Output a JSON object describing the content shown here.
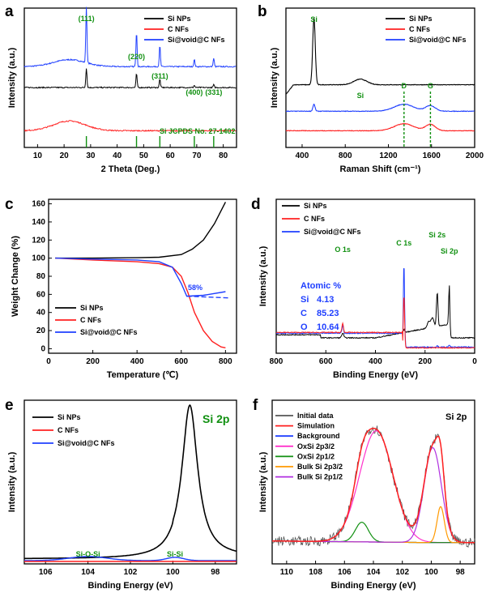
{
  "chart_data": [
    {
      "id": "a",
      "type": "line",
      "panel_label": "a",
      "xlabel": "2 Theta (Deg.)",
      "ylabel": "Intensity (a.u.)",
      "xlim": [
        5,
        85
      ],
      "xticks": [
        10,
        20,
        30,
        40,
        50,
        60,
        70,
        80
      ],
      "legend": [
        "Si NPs",
        "C NFs",
        "Si@void@C NFs"
      ],
      "peak_labels": [
        {
          "text": "(111)",
          "x": 28.4
        },
        {
          "text": "(220)",
          "x": 47.3
        },
        {
          "text": "(311)",
          "x": 56.1
        },
        {
          "text": "(400)",
          "x": 69.1
        },
        {
          "text": "(331)",
          "x": 76.4
        }
      ],
      "reference_text": "Si JCPDS No. 27-1402",
      "reference_lines": [
        28.4,
        47.3,
        56.1,
        69.1,
        76.4
      ],
      "series": [
        {
          "name": "Si@void@C NFs",
          "color": "#1f3fff",
          "baseline": 0.58,
          "peaks": [
            [
              28.4,
              0.4
            ],
            [
              47.3,
              0.25
            ],
            [
              56.1,
              0.15
            ],
            [
              69.1,
              0.05
            ],
            [
              76.4,
              0.06
            ]
          ],
          "hump": 0.05
        },
        {
          "name": "Si NPs",
          "color": "#000000",
          "baseline": 0.43,
          "peaks": [
            [
              28.4,
              0.14
            ],
            [
              47.3,
              0.1
            ],
            [
              56.1,
              0.06
            ],
            [
              69.1,
              0.015
            ],
            [
              76.4,
              0.02
            ]
          ],
          "hump": 0.0
        },
        {
          "name": "C NFs",
          "color": "#ff2020",
          "baseline": 0.12,
          "peaks": [],
          "hump": 0.07
        }
      ]
    },
    {
      "id": "b",
      "type": "line",
      "panel_label": "b",
      "xlabel": "Raman Shift (cm⁻¹)",
      "ylabel": "Intensity (a.u.)",
      "xlim": [
        250,
        2000
      ],
      "xticks": [
        400,
        800,
        1200,
        1600,
        2000
      ],
      "legend": [
        "Si NPs",
        "C NFs",
        "Si@void@C NFs"
      ],
      "peak_labels": [
        {
          "text": "Si",
          "x": 510,
          "color": "green"
        },
        {
          "text": "Si",
          "x": 940,
          "color": "green"
        },
        {
          "text": "D",
          "x": 1345,
          "color": "green"
        },
        {
          "text": "G",
          "x": 1590,
          "color": "green"
        }
      ],
      "series": [
        {
          "name": "Si NPs",
          "color": "#000000",
          "baseline": 0.45,
          "peaks": [
            [
              510,
              0.48,
              12
            ],
            [
              940,
              0.04,
              60
            ]
          ]
        },
        {
          "name": "Si@void@C NFs",
          "color": "#1f3fff",
          "baseline": 0.26,
          "peaks": [
            [
              510,
              0.05,
              10
            ],
            [
              1345,
              0.05,
              90
            ],
            [
              1590,
              0.04,
              45
            ]
          ]
        },
        {
          "name": "C NFs",
          "color": "#ff2020",
          "baseline": 0.12,
          "peaks": [
            [
              1345,
              0.05,
              90
            ],
            [
              1590,
              0.045,
              45
            ]
          ]
        }
      ]
    },
    {
      "id": "c",
      "type": "line",
      "panel_label": "c",
      "xlabel": "Temperature (℃)",
      "ylabel": "Weight Change (%)",
      "xlim": [
        0,
        850
      ],
      "ylim": [
        -5,
        165
      ],
      "xticks": [
        0,
        200,
        400,
        600,
        800
      ],
      "yticks": [
        0,
        20,
        40,
        60,
        80,
        100,
        120,
        140,
        160
      ],
      "legend": [
        "Si NPs",
        "C NFs",
        "Si@void@C NFs"
      ],
      "annotation": "58%",
      "series": [
        {
          "name": "Si NPs",
          "color": "#000000",
          "points": [
            [
              30,
              100
            ],
            [
              200,
              100
            ],
            [
              400,
              100.5
            ],
            [
              500,
              101
            ],
            [
              600,
              104
            ],
            [
              650,
              110
            ],
            [
              700,
              120
            ],
            [
              750,
              138
            ],
            [
              800,
              162
            ]
          ]
        },
        {
          "name": "C NFs",
          "color": "#ff2020",
          "points": [
            [
              30,
              100
            ],
            [
              200,
              98
            ],
            [
              400,
              96
            ],
            [
              500,
              94
            ],
            [
              560,
              90
            ],
            [
              600,
              80
            ],
            [
              630,
              62
            ],
            [
              660,
              40
            ],
            [
              700,
              20
            ],
            [
              740,
              8
            ],
            [
              780,
              2
            ],
            [
              800,
              1
            ]
          ]
        },
        {
          "name": "Si@void@C NFs",
          "color": "#1f3fff",
          "points": [
            [
              30,
              100
            ],
            [
              200,
              99
            ],
            [
              400,
              98
            ],
            [
              500,
              96
            ],
            [
              560,
              90
            ],
            [
              600,
              72
            ],
            [
              625,
              58
            ],
            [
              700,
              59
            ],
            [
              800,
              63
            ]
          ]
        }
      ],
      "dashed": {
        "color": "#1f3fff",
        "points": [
          [
            625,
            58
          ],
          [
            820,
            56
          ]
        ]
      }
    },
    {
      "id": "d",
      "type": "line",
      "panel_label": "d",
      "xlabel": "Binding Energy (eV)",
      "ylabel": "Intensity (a.u.)",
      "xlim": [
        800,
        0
      ],
      "xticks": [
        800,
        600,
        400,
        200,
        0
      ],
      "legend": [
        "Si NPs",
        "C NFs",
        "Si@void@C NFs"
      ],
      "peak_labels": [
        {
          "text": "O 1s",
          "x": 532
        },
        {
          "text": "C 1s",
          "x": 285
        },
        {
          "text": "Si 2s",
          "x": 151
        },
        {
          "text": "Si 2p",
          "x": 102
        }
      ],
      "atomic": {
        "title": "Atomic %",
        "rows": [
          [
            "Si",
            "4.13"
          ],
          [
            "C",
            "85.23"
          ],
          [
            "O",
            "10.64"
          ]
        ]
      }
    },
    {
      "id": "e",
      "type": "line",
      "panel_label": "e",
      "xlabel": "Binding Energy (eV)",
      "ylabel": "Intensity (a.u.)",
      "xlim": [
        107,
        97
      ],
      "xticks": [
        106,
        104,
        102,
        100,
        98
      ],
      "legend": [
        "Si NPs",
        "C NFs",
        "Si@void@C NFs"
      ],
      "title_label": "Si 2p",
      "peak_labels": [
        {
          "text": "Si-O-Si",
          "x": 104.0
        },
        {
          "text": "Si-Si",
          "x": 99.9
        }
      ],
      "series": [
        {
          "name": "Si NPs",
          "color": "#000000",
          "type": "lorentz",
          "center": 99.2,
          "height": 0.93,
          "width": 0.45,
          "base": 0.03
        },
        {
          "name": "Si@void@C NFs",
          "color": "#1f3fff",
          "type": "double",
          "peaks": [
            [
              104.0,
              0.025,
              0.9
            ],
            [
              99.9,
              0.02,
              0.4
            ]
          ],
          "base": 0.02
        },
        {
          "name": "C NFs",
          "color": "#ff2020",
          "type": "flat",
          "base": 0.015
        }
      ]
    },
    {
      "id": "f",
      "type": "line",
      "panel_label": "f",
      "xlabel": "Binding Energy (eV)",
      "ylabel": "Intensity (a.u.)",
      "xlim": [
        111,
        97
      ],
      "xticks": [
        110,
        108,
        106,
        104,
        102,
        100,
        98
      ],
      "title_label": "Si 2p",
      "legend": [
        {
          "text": "Initial data",
          "color": "#555555"
        },
        {
          "text": "Simulation",
          "color": "#ff2020"
        },
        {
          "text": "Background",
          "color": "#1f3fff"
        },
        {
          "text": "OxSi 2p3/2",
          "color": "#ff33cc"
        },
        {
          "text": "OxSi 2p1/2",
          "color": "#109010"
        },
        {
          "text": "Bulk Si 2p3/2",
          "color": "#ff9900"
        },
        {
          "text": "Bulk Si 2p1/2",
          "color": "#b030e0"
        }
      ],
      "components": [
        {
          "name": "OxSi 2p3/2",
          "color": "#ff33cc",
          "center": 103.8,
          "height": 0.68,
          "width": 1.15
        },
        {
          "name": "OxSi 2p1/2",
          "color": "#109010",
          "center": 104.8,
          "height": 0.12,
          "width": 0.45
        },
        {
          "name": "Bulk Si 2p3/2",
          "color": "#ff9900",
          "center": 99.35,
          "height": 0.22,
          "width": 0.25
        },
        {
          "name": "Bulk Si 2p1/2",
          "color": "#b030e0",
          "center": 99.9,
          "height": 0.58,
          "width": 0.6
        }
      ],
      "background_level": 0.13
    }
  ]
}
